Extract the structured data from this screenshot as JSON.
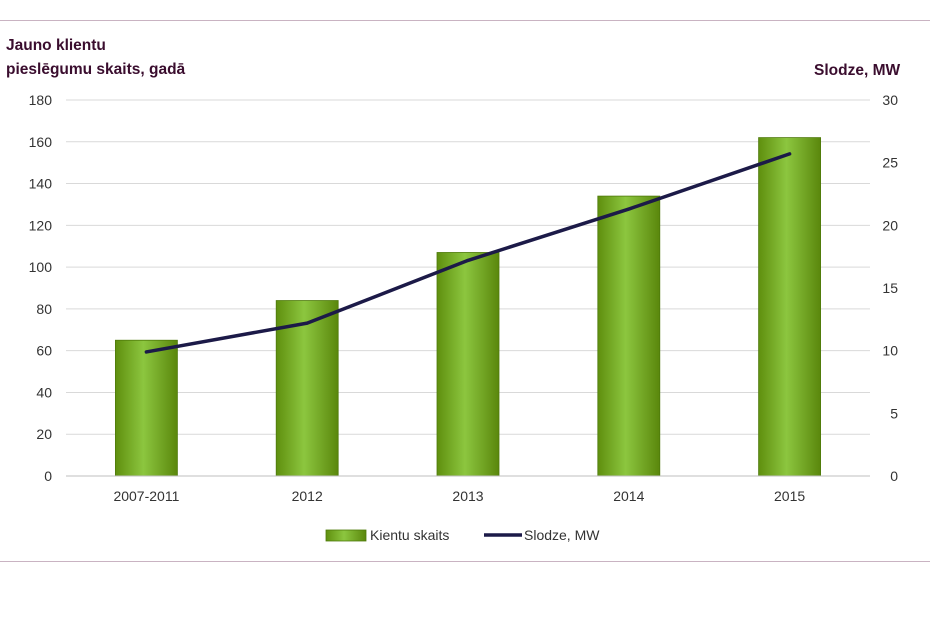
{
  "chart_data": {
    "type": "bar",
    "left_axis_title_line1": "Jauno klientu",
    "left_axis_title_line2": "pieslēgumu skaits, gadā",
    "right_axis_title": "Slodze, MW",
    "categories": [
      "2007-2011",
      "2012",
      "2013",
      "2014",
      "2015"
    ],
    "series": [
      {
        "name": "Kientu skaits",
        "type": "bar",
        "axis": "left",
        "values": [
          65,
          84,
          107,
          134,
          162
        ],
        "color": "#7cb518"
      },
      {
        "name": "Slodze, MW",
        "type": "line",
        "axis": "right",
        "values": [
          9.9,
          12.2,
          17.2,
          21.3,
          25.7
        ],
        "color": "#1c1a48"
      }
    ],
    "y_left": {
      "min": 0,
      "max": 180,
      "ticks": [
        0,
        20,
        40,
        60,
        80,
        100,
        120,
        140,
        160,
        180
      ]
    },
    "y_right": {
      "min": 0,
      "max": 30,
      "ticks": [
        0,
        5,
        10,
        15,
        20,
        25,
        30
      ]
    },
    "grid": true,
    "legend_position": "bottom"
  }
}
